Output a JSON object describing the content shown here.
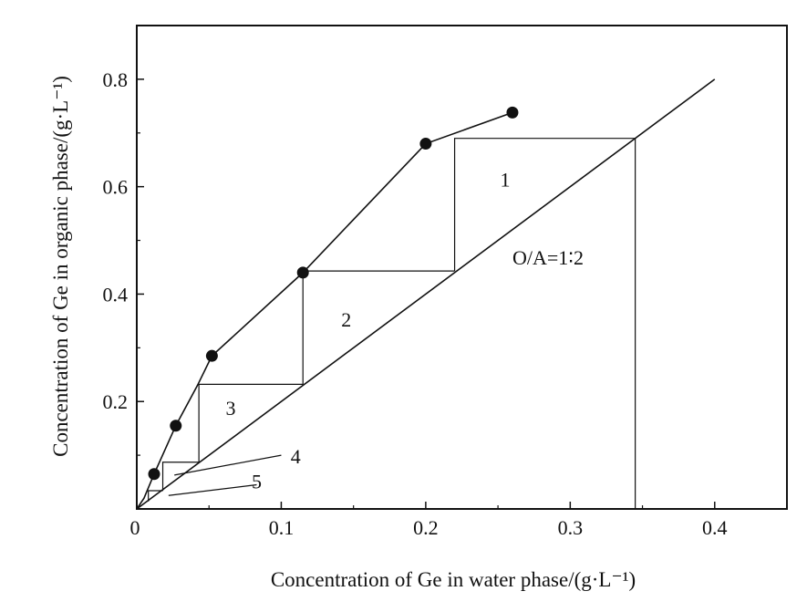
{
  "chart_data": {
    "type": "line",
    "title": "",
    "xlabel": "Concentration of Ge in water phase/(g·L⁻¹)",
    "ylabel": "Concentration of Ge in organic phase/(g·L⁻¹)",
    "xlim": [
      0,
      0.45
    ],
    "ylim": [
      0,
      0.9
    ],
    "x_ticks": [
      {
        "value": 0,
        "label": "0"
      },
      {
        "value": 0.1,
        "label": "0.1"
      },
      {
        "value": 0.2,
        "label": "0.2"
      },
      {
        "value": 0.3,
        "label": "0.3"
      },
      {
        "value": 0.4,
        "label": "0.4"
      }
    ],
    "y_ticks": [
      {
        "value": 0.2,
        "label": "0.2"
      },
      {
        "value": 0.4,
        "label": "0.4"
      },
      {
        "value": 0.6,
        "label": "0.6"
      },
      {
        "value": 0.8,
        "label": "0.8"
      }
    ],
    "grid": false,
    "equilibrium_curve": {
      "x": [
        0,
        0.005,
        0.012,
        0.027,
        0.042,
        0.052,
        0.115,
        0.2,
        0.26
      ],
      "y": [
        0,
        0.02,
        0.065,
        0.155,
        0.23,
        0.285,
        0.44,
        0.68,
        0.738
      ]
    },
    "equilibrium_points": {
      "x": [
        0.012,
        0.027,
        0.052,
        0.115,
        0.2,
        0.26
      ],
      "y": [
        0.065,
        0.155,
        0.285,
        0.44,
        0.68,
        0.738
      ]
    },
    "operating_line": {
      "x": [
        0,
        0.4
      ],
      "y": [
        0,
        0.8
      ],
      "label": "O/A=1∶2",
      "label_pos": [
        0.26,
        0.455
      ]
    },
    "feed_line": {
      "x": [
        0.345,
        0.345
      ],
      "y": [
        0,
        0.69
      ]
    },
    "stages": [
      {
        "label": "1",
        "from": [
          0.345,
          0.69
        ],
        "corner": [
          0.22,
          0.69
        ],
        "to": [
          0.22,
          0.443
        ],
        "label_pos": [
          0.255,
          0.6
        ]
      },
      {
        "label": "2",
        "from": [
          0.22,
          0.443
        ],
        "corner": [
          0.115,
          0.443
        ],
        "to": [
          0.115,
          0.232
        ],
        "label_pos": [
          0.145,
          0.34
        ]
      },
      {
        "label": "3",
        "from": [
          0.115,
          0.232
        ],
        "corner": [
          0.043,
          0.232
        ],
        "to": [
          0.043,
          0.087
        ],
        "label_pos": [
          0.065,
          0.175
        ]
      },
      {
        "label": "4",
        "from": [
          0.043,
          0.087
        ],
        "corner": [
          0.018,
          0.087
        ],
        "to": [
          0.018,
          0.034
        ],
        "label_pos": [
          0.11,
          0.085
        ]
      },
      {
        "label": "5",
        "from": [
          0.018,
          0.034
        ],
        "corner": [
          0.008,
          0.034
        ],
        "to": [
          0.008,
          0.014
        ],
        "label_pos": [
          0.083,
          0.038
        ]
      }
    ],
    "leaders": [
      {
        "from": [
          0.026,
          0.063
        ],
        "to": [
          0.1,
          0.1
        ]
      },
      {
        "from": [
          0.022,
          0.025
        ],
        "to": [
          0.083,
          0.045
        ]
      }
    ]
  }
}
